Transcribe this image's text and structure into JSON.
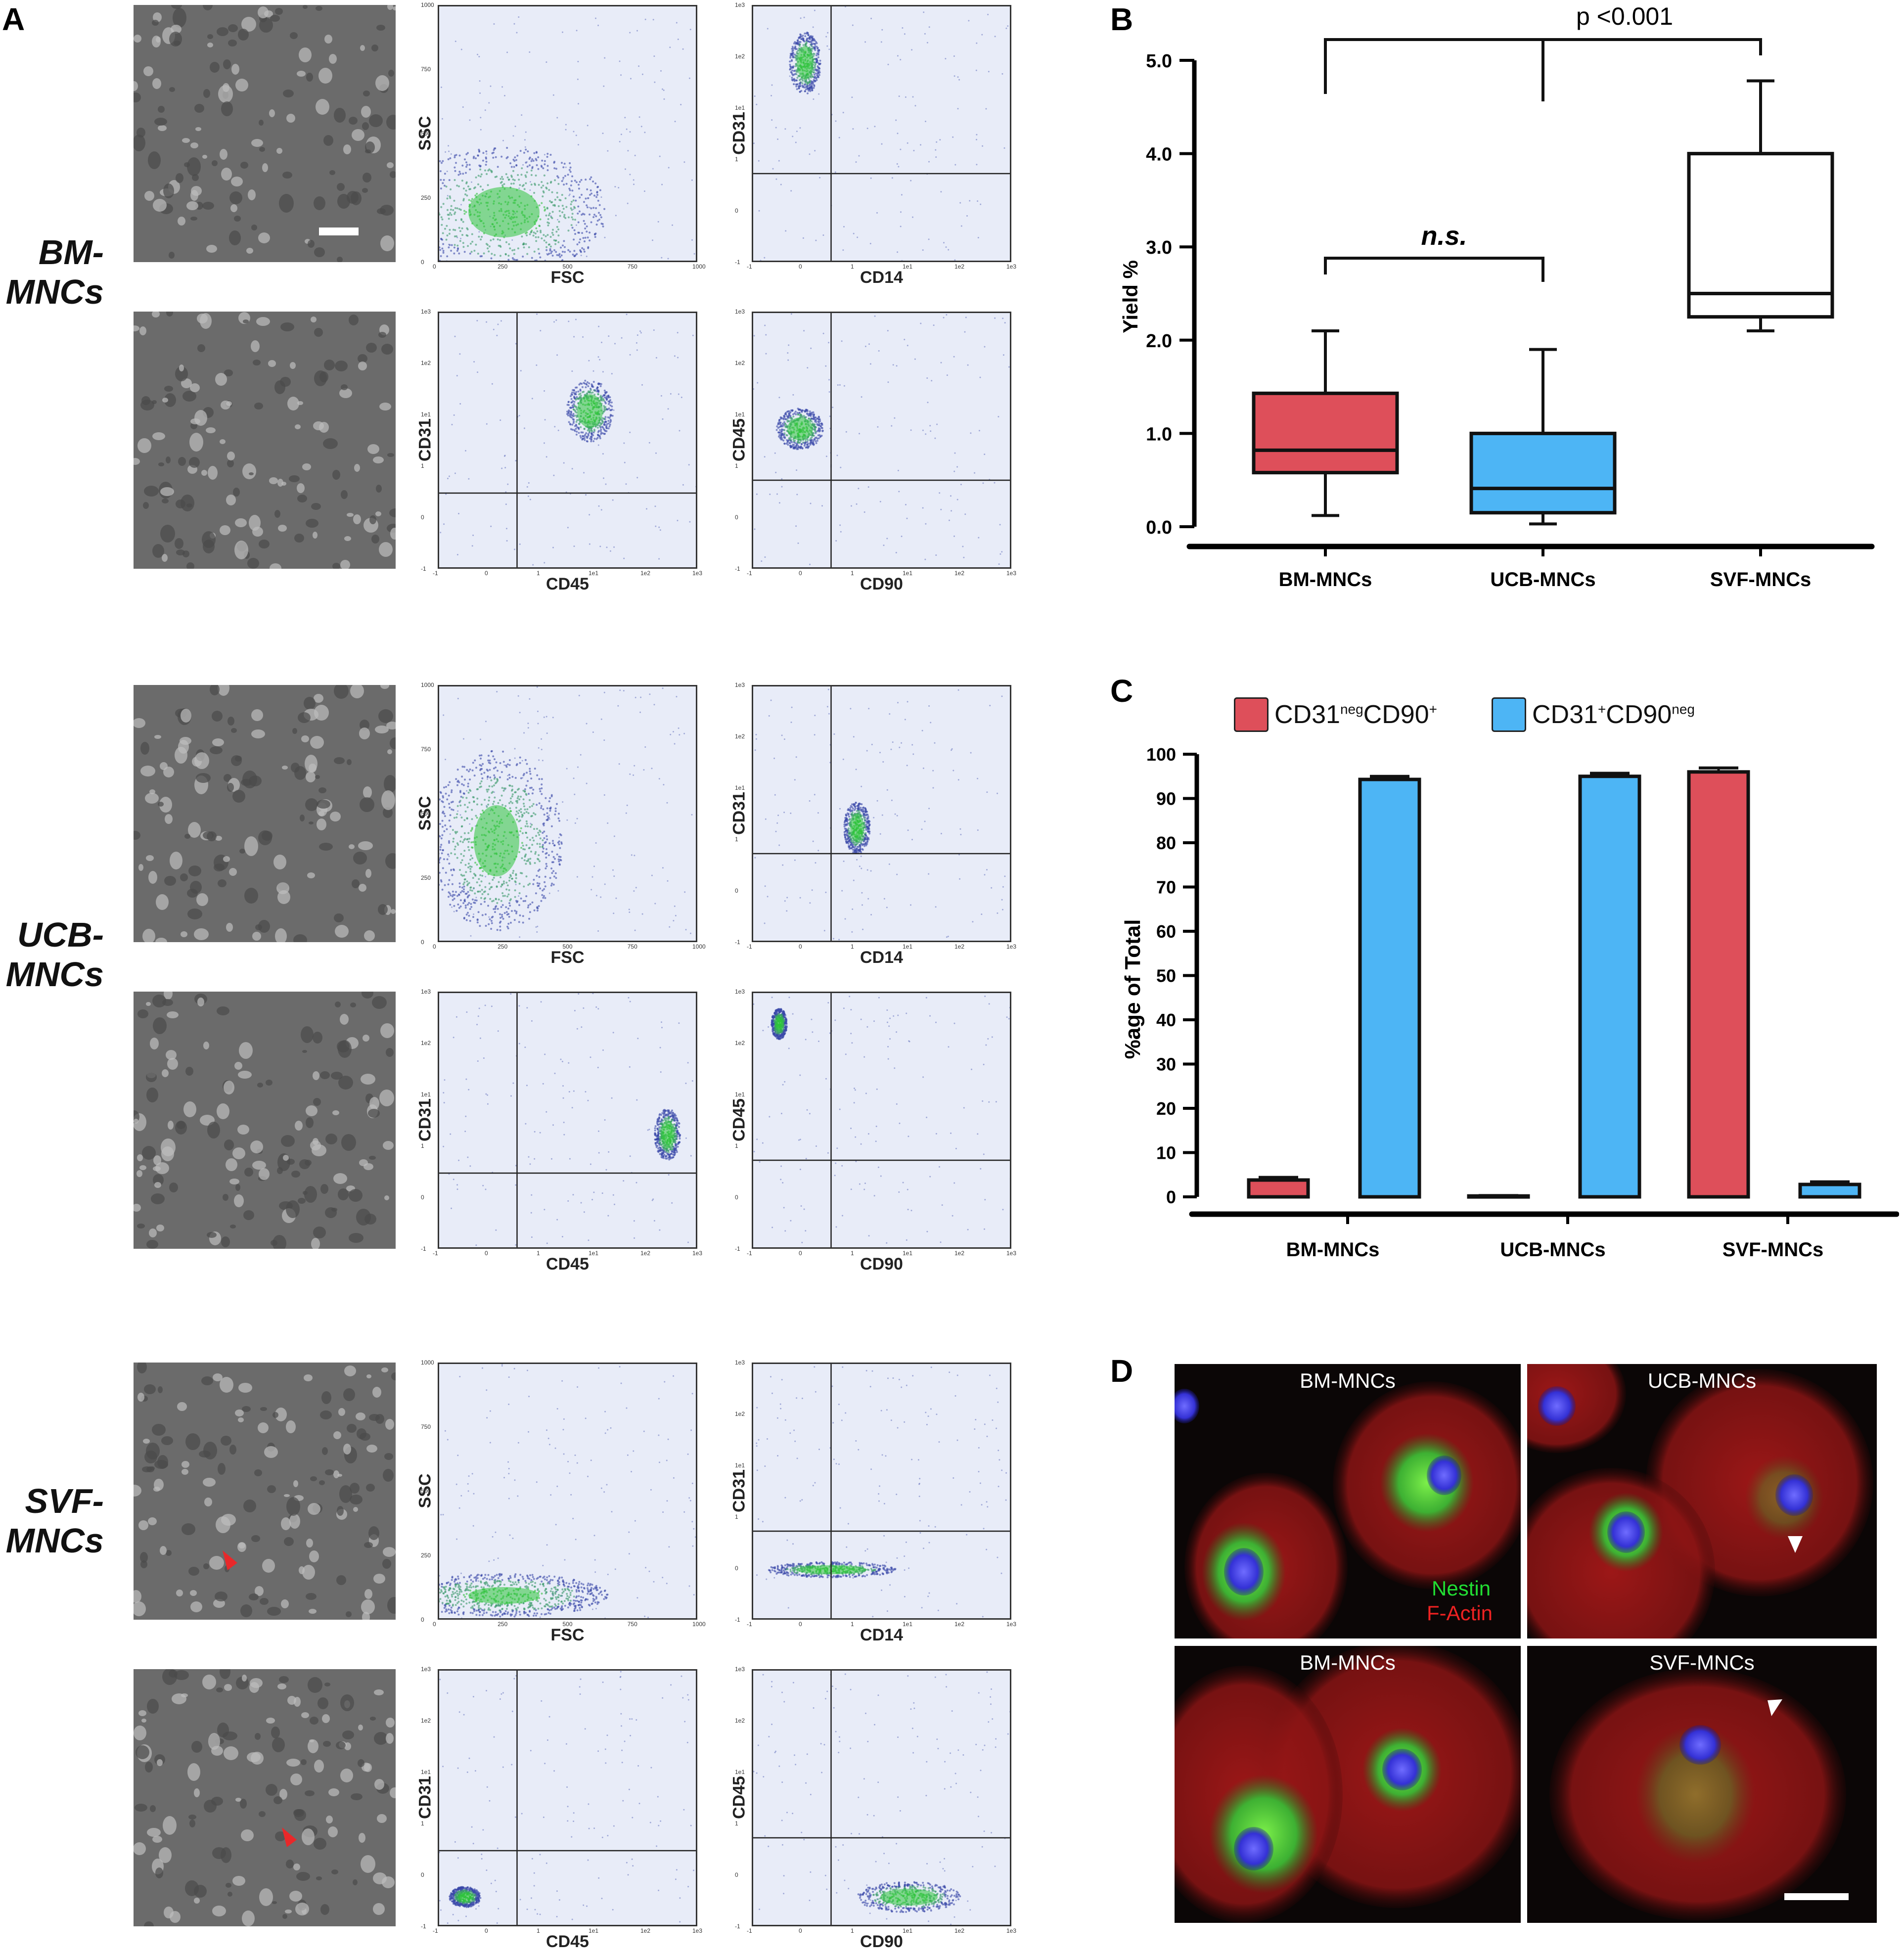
{
  "panels": {
    "A": {
      "letter": "A",
      "groups": [
        {
          "label_line1": "BM-",
          "label_line2": "MNCs",
          "rows": [
            {
              "plot1": {
                "x": "FSC",
                "y": "SSC"
              },
              "plot2": {
                "x": "CD14",
                "y": "CD31"
              }
            },
            {
              "plot1": {
                "x": "CD45",
                "y": "CD31"
              },
              "plot2": {
                "x": "CD90",
                "y": "CD45"
              }
            }
          ]
        },
        {
          "label_line1": "UCB-",
          "label_line2": "MNCs",
          "rows": [
            {
              "plot1": {
                "x": "FSC",
                "y": "SSC"
              },
              "plot2": {
                "x": "CD14",
                "y": "CD31"
              }
            },
            {
              "plot1": {
                "x": "CD45",
                "y": "CD31"
              },
              "plot2": {
                "x": "CD90",
                "y": "CD45"
              }
            }
          ]
        },
        {
          "label_line1": "SVF-",
          "label_line2": "MNCs",
          "rows": [
            {
              "plot1": {
                "x": "FSC",
                "y": "SSC"
              },
              "plot2": {
                "x": "CD14",
                "y": "CD31"
              }
            },
            {
              "plot1": {
                "x": "CD45",
                "y": "CD31"
              },
              "plot2": {
                "x": "CD90",
                "y": "CD45"
              }
            }
          ]
        }
      ],
      "linear_ticks": [
        "0",
        "250",
        "500",
        "750",
        "1000"
      ],
      "log_ticks": [
        "-1",
        "0",
        "1",
        "1e1",
        "1e2",
        "1e3"
      ]
    },
    "B": {
      "letter": "B",
      "annotation_top": "p <0.001",
      "annotation_mid": "n.s.",
      "colors": {
        "BM-MNCs": "#de4f5a",
        "UCB-MNCs": "#4db5f5",
        "SVF-MNCs": "#ffffff"
      }
    },
    "C": {
      "letter": "C",
      "legend": [
        {
          "base1": "CD31",
          "sup1": "neg",
          "base2": "CD90",
          "sup2": "+",
          "color": "#de4f5a"
        },
        {
          "base1": "CD31",
          "sup1": "+",
          "base2": "CD90",
          "sup2": "neg",
          "color": "#4db5f5"
        }
      ]
    },
    "D": {
      "letter": "D",
      "tiles": [
        {
          "title": "BM-MNCs",
          "stain1": "Nestin",
          "stain2": "F-Actin"
        },
        {
          "title": "UCB-MNCs"
        },
        {
          "title": "BM-MNCs"
        },
        {
          "title": "SVF-MNCs"
        }
      ],
      "stain_colors": {
        "Nestin": "#22dd33",
        "F-Actin": "#ee2222"
      }
    }
  },
  "chart_data": [
    {
      "type": "box",
      "panel": "B",
      "categories": [
        "BM-MNCs",
        "UCB-MNCs",
        "SVF-MNCs"
      ],
      "ylabel": "Yield %",
      "ylim": [
        0,
        5.0
      ],
      "yticks": [
        "0.0",
        "1.0",
        "2.0",
        "3.0",
        "4.0",
        "5.0"
      ],
      "boxes": [
        {
          "min": 0.12,
          "q1": 0.58,
          "median": 0.82,
          "q3": 1.43,
          "max": 2.1
        },
        {
          "min": 0.03,
          "q1": 0.15,
          "median": 0.41,
          "q3": 1.0,
          "max": 1.9
        },
        {
          "min": 2.1,
          "q1": 2.25,
          "median": 2.5,
          "q3": 4.0,
          "max": 4.78
        }
      ]
    },
    {
      "type": "bar",
      "panel": "C",
      "categories": [
        "BM-MNCs",
        "UCB-MNCs",
        "SVF-MNCs"
      ],
      "ylabel": "%age of Total",
      "ylim": [
        0,
        100
      ],
      "yticks": [
        "0",
        "10",
        "20",
        "30",
        "40",
        "50",
        "60",
        "70",
        "80",
        "90",
        "100"
      ],
      "series": [
        {
          "name": "CD31negCD90+",
          "values": [
            3.8,
            0.2,
            96.0
          ],
          "errors": [
            0.6,
            0.1,
            0.9
          ],
          "color": "#de4f5a"
        },
        {
          "name": "CD31+CD90neg",
          "values": [
            94.3,
            95.0,
            2.8
          ],
          "errors": [
            0.7,
            0.7,
            0.6
          ],
          "color": "#4db5f5"
        }
      ]
    }
  ]
}
